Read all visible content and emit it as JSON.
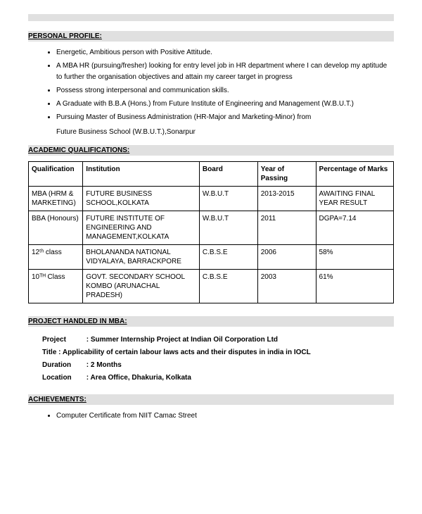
{
  "colors": {
    "section_bg": "#e0e0e0",
    "text": "#000000",
    "background": "#ffffff",
    "border": "#000000"
  },
  "typography": {
    "body_fontsize": 10,
    "header_fontsize": 10,
    "font_family": "Arial"
  },
  "sections": {
    "personal": {
      "heading": "PERSONAL PROFILE:",
      "bullets": [
        "Energetic, Ambitious person with Positive Attitude.",
        "A MBA HR (pursuing/fresher) looking for entry level job in HR department where I can develop my aptitude to further the organisation objectives and attain my career target in progress",
        "Possess strong interpersonal and communication skills.",
        "A Graduate with B.B.A (Hons.) from Future Institute of Engineering and Management (W.B.U.T.)",
        "Pursuing Master of Business Administration (HR-Major and Marketing-Minor) from"
      ],
      "bullet_continuation": "Future Business School (W.B.U.T.),Sonarpur"
    },
    "academic": {
      "heading": "ACADEMIC QUALIFICATIONS:",
      "table": {
        "type": "table",
        "columns": [
          "Qualification",
          "Institution",
          "Board",
          "Year of Passing",
          "Percentage of Marks"
        ],
        "rows": [
          [
            "MBA (HRM & MARKETING)",
            "FUTURE BUSINESS SCHOOL,KOLKATA",
            "W.B.U.T",
            "2013-2015",
            "AWAITING FINAL YEAR RESULT"
          ],
          [
            "BBA (Honours)",
            "FUTURE INSTITUTE OF ENGINEERING AND MANAGEMENT,KOLKATA",
            "W.B.U.T",
            "2011",
            "DGPA=7.14"
          ],
          [
            "12ᵗʰ class",
            "BHOLANANDA NATIONAL VIDYALAYA, BARRACKPORE",
            "C.B.S.E",
            "2006",
            "58%"
          ],
          [
            "10ᵀᴴ Class",
            "GOVT. SECONDARY SCHOOL KOMBO (ARUNACHAL PRADESH)",
            "C.B.S.E",
            "2003",
            "61%"
          ]
        ],
        "column_widths_pct": [
          14,
          30,
          15,
          15,
          20
        ]
      }
    },
    "project": {
      "heading": "PROJECT HANDLED IN MBA:",
      "items": {
        "project_label": "Project",
        "project_value": ": Summer Internship Project at Indian Oil Corporation Ltd",
        "title_label": "Title   : Applicability of certain labour laws acts and their disputes in india in IOCL",
        "duration_label": "Duration",
        "duration_value": ": 2 Months",
        "location_label": "Location",
        "location_value": ": Area Office, Dhakuria, Kolkata"
      }
    },
    "achievements": {
      "heading": "ACHIEVEMENTS:",
      "bullets": [
        "Computer Certificate from NIIT Camac Street"
      ]
    }
  }
}
